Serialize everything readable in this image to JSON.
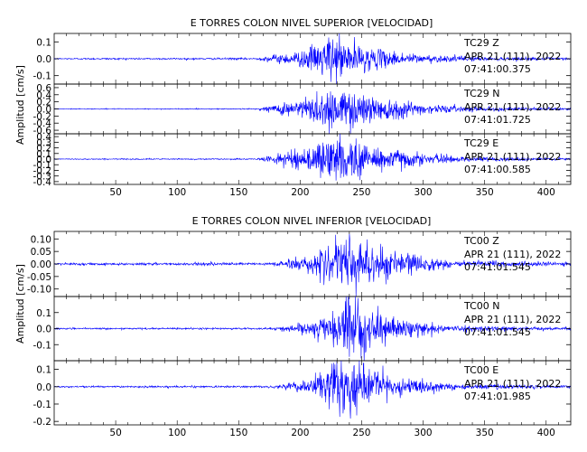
{
  "chart_data": [
    {
      "type": "line",
      "title": "E TORRES COLON NIVEL SUPERIOR [VELOCIDAD]",
      "xlabel": "",
      "ylabel": "Amplitud [cm/s]",
      "xlim": [
        0,
        420
      ],
      "x_ticks": [
        "50",
        "100",
        "150",
        "200",
        "250",
        "300",
        "350",
        "400"
      ],
      "color": "#0000ff",
      "traces": [
        {
          "channel": "TC29   Z",
          "date": "APR 21 (111), 2022",
          "time": "07:41:00.375",
          "ylim": [
            -0.15,
            0.15
          ],
          "y_ticks": [
            "0.1",
            "0.0",
            "-0.1"
          ],
          "y_tick_values": [
            0.1,
            0.0,
            -0.1
          ],
          "noise": 0.002,
          "envelope": [
            [
              0,
              0.002
            ],
            [
              165,
              0.003
            ],
            [
              175,
              0.015
            ],
            [
              200,
              0.04
            ],
            [
              215,
              0.08
            ],
            [
              225,
              0.13
            ],
            [
              240,
              0.09
            ],
            [
              260,
              0.05
            ],
            [
              300,
              0.02
            ],
            [
              350,
              0.008
            ],
            [
              420,
              0.004
            ]
          ]
        },
        {
          "channel": "TC29   N",
          "date": "APR 21 (111), 2022",
          "time": "07:41:01.725",
          "ylim": [
            -0.7,
            0.7
          ],
          "y_ticks": [
            "0.6",
            "0.4",
            "0.2",
            "0.0",
            "-0.2",
            "-0.4",
            "-0.6"
          ],
          "y_tick_values": [
            0.6,
            0.4,
            0.2,
            0.0,
            -0.2,
            -0.4,
            -0.6
          ],
          "noise": 0.005,
          "envelope": [
            [
              0,
              0.005
            ],
            [
              165,
              0.008
            ],
            [
              175,
              0.08
            ],
            [
              200,
              0.25
            ],
            [
              215,
              0.45
            ],
            [
              225,
              0.55
            ],
            [
              245,
              0.45
            ],
            [
              270,
              0.3
            ],
            [
              300,
              0.12
            ],
            [
              340,
              0.05
            ],
            [
              420,
              0.02
            ]
          ]
        },
        {
          "channel": "TC29   E",
          "date": "APR 21 (111), 2022",
          "time": "07:41:00.585",
          "ylim": [
            -0.45,
            0.45
          ],
          "y_ticks": [
            "0.4",
            "0.3",
            "0.2",
            "0.1",
            "0.0",
            "-0.1",
            "-0.2",
            "-0.3",
            "-0.4"
          ],
          "y_tick_values": [
            0.4,
            0.3,
            0.2,
            0.1,
            0.0,
            -0.1,
            -0.2,
            -0.3,
            -0.4
          ],
          "noise": 0.004,
          "envelope": [
            [
              0,
              0.004
            ],
            [
              165,
              0.006
            ],
            [
              175,
              0.05
            ],
            [
              200,
              0.15
            ],
            [
              215,
              0.28
            ],
            [
              225,
              0.35
            ],
            [
              245,
              0.3
            ],
            [
              270,
              0.2
            ],
            [
              300,
              0.08
            ],
            [
              340,
              0.03
            ],
            [
              420,
              0.015
            ]
          ]
        }
      ]
    },
    {
      "type": "line",
      "title": "E TORRES COLON NIVEL INFERIOR [VELOCIDAD]",
      "xlabel": "",
      "ylabel": "Amplitud [cm/s]",
      "xlim": [
        0,
        420
      ],
      "x_ticks": [
        "50",
        "100",
        "150",
        "200",
        "250",
        "300",
        "350",
        "400"
      ],
      "color": "#0000ff",
      "traces": [
        {
          "channel": "TC00   Z",
          "date": "APR 21 (111), 2022",
          "time": "07:41:01.545",
          "ylim": [
            -0.13,
            0.13
          ],
          "y_ticks": [
            "0.10",
            "0.05",
            "0.00",
            "-0.05",
            "-0.10"
          ],
          "y_tick_values": [
            0.1,
            0.05,
            0.0,
            -0.05,
            -0.1
          ],
          "noise": 0.002,
          "envelope": [
            [
              0,
              0.002
            ],
            [
              175,
              0.003
            ],
            [
              185,
              0.01
            ],
            [
              210,
              0.03
            ],
            [
              230,
              0.07
            ],
            [
              240,
              0.11
            ],
            [
              255,
              0.08
            ],
            [
              280,
              0.04
            ],
            [
              320,
              0.012
            ],
            [
              420,
              0.004
            ]
          ]
        },
        {
          "channel": "TC00   N",
          "date": "APR 21 (111), 2022",
          "time": "07:41:01.545",
          "ylim": [
            -0.2,
            0.2
          ],
          "y_ticks": [
            "0.1",
            "0.0",
            "-0.1"
          ],
          "y_tick_values": [
            0.1,
            0.0,
            -0.1
          ],
          "noise": 0.002,
          "envelope": [
            [
              0,
              0.002
            ],
            [
              175,
              0.003
            ],
            [
              185,
              0.008
            ],
            [
              210,
              0.04
            ],
            [
              230,
              0.12
            ],
            [
              240,
              0.17
            ],
            [
              255,
              0.1
            ],
            [
              280,
              0.05
            ],
            [
              320,
              0.015
            ],
            [
              420,
              0.005
            ]
          ]
        },
        {
          "channel": "TC00   E",
          "date": "APR 21 (111), 2022",
          "time": "07:41:01.985",
          "ylim": [
            -0.22,
            0.15
          ],
          "y_ticks": [
            "0.1",
            "0.0",
            "-0.1",
            "-0.2"
          ],
          "y_tick_values": [
            0.1,
            0.0,
            -0.1,
            -0.2
          ],
          "noise": 0.002,
          "envelope": [
            [
              0,
              0.002
            ],
            [
              175,
              0.003
            ],
            [
              185,
              0.01
            ],
            [
              210,
              0.04
            ],
            [
              225,
              0.11
            ],
            [
              235,
              0.17
            ],
            [
              250,
              0.1
            ],
            [
              275,
              0.05
            ],
            [
              320,
              0.015
            ],
            [
              420,
              0.005
            ]
          ]
        }
      ]
    }
  ]
}
